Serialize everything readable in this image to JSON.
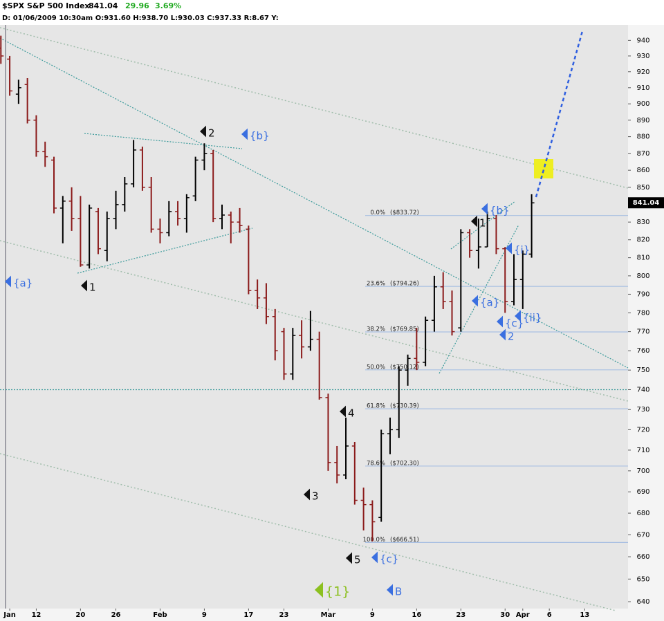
{
  "chart_data": {
    "type": "ohlc",
    "symbol": "$SPX S&P 500 Index",
    "last_price": 841.04,
    "change": 29.96,
    "change_pct": "3.69%",
    "info": "D: 01/06/2009  10:30am O:931.60 H:938.70 L:930.03 C:937.33 R:8.67 Y:",
    "up_color": "#000000",
    "down_color": "#8b1a1a",
    "log_scale": true,
    "x": [
      0,
      1,
      2,
      3,
      4,
      5,
      6,
      7,
      8,
      9,
      10,
      11,
      12,
      13,
      14,
      15,
      16,
      17,
      18,
      19,
      20,
      21,
      22,
      23,
      24,
      25,
      26,
      27,
      28,
      29,
      30,
      31,
      32,
      33,
      34,
      35,
      36,
      37,
      38,
      39,
      40,
      41,
      42,
      43,
      44,
      45,
      46,
      47,
      48,
      49,
      50,
      51,
      52,
      53,
      54,
      55,
      56,
      57,
      58,
      59,
      60
    ],
    "open": [
      935,
      928,
      906,
      912,
      890,
      871,
      866,
      838,
      842,
      832,
      806,
      836,
      814,
      832,
      840,
      852,
      872,
      850,
      826,
      824,
      836,
      832,
      845,
      866,
      870,
      832,
      834,
      830,
      826,
      792,
      788,
      778,
      770,
      748,
      768,
      762,
      766,
      736,
      704,
      698,
      712,
      686,
      684,
      678,
      718,
      720,
      750,
      756,
      754,
      776,
      794,
      786,
      772,
      824,
      814,
      816,
      832,
      815,
      786,
      798,
      812
    ],
    "high": [
      943,
      930,
      915,
      916,
      893,
      877,
      868,
      845,
      850,
      845,
      840,
      838,
      836,
      848,
      856,
      878,
      874,
      856,
      832,
      842,
      842,
      846,
      868,
      876,
      872,
      840,
      836,
      838,
      828,
      798,
      796,
      782,
      772,
      772,
      776,
      781,
      770,
      738,
      712,
      726,
      714,
      692,
      686,
      720,
      726,
      752,
      758,
      772,
      778,
      800,
      802,
      792,
      826,
      826,
      832,
      836,
      834,
      816,
      812,
      814,
      846
    ],
    "low": [
      925,
      905,
      900,
      888,
      868,
      862,
      835,
      818,
      825,
      805,
      804,
      812,
      808,
      826,
      836,
      850,
      848,
      824,
      818,
      822,
      828,
      824,
      842,
      860,
      830,
      826,
      818,
      824,
      790,
      782,
      774,
      755,
      745,
      745,
      756,
      760,
      735,
      700,
      694,
      696,
      684,
      672,
      667,
      676,
      708,
      716,
      742,
      750,
      752,
      770,
      782,
      768,
      770,
      810,
      804,
      816,
      812,
      780,
      784,
      782,
      810
    ],
    "close": [
      930,
      908,
      910,
      890,
      871,
      868,
      838,
      842,
      832,
      806,
      838,
      815,
      832,
      840,
      852,
      872,
      850,
      826,
      824,
      836,
      832,
      844,
      866,
      870,
      832,
      834,
      830,
      828,
      792,
      788,
      778,
      760,
      748,
      768,
      762,
      766,
      736,
      704,
      698,
      712,
      686,
      684,
      676,
      718,
      720,
      750,
      756,
      754,
      776,
      794,
      786,
      770,
      824,
      814,
      816,
      832,
      815,
      786,
      798,
      812,
      841
    ],
    "xlim": [
      -0.1,
      70.9
    ],
    "xticks": [
      {
        "value": 1,
        "label": "Jan"
      },
      {
        "value": 4,
        "label": "12"
      },
      {
        "value": 9,
        "label": "20"
      },
      {
        "value": 13,
        "label": "26"
      },
      {
        "value": 18,
        "label": "Feb"
      },
      {
        "value": 23,
        "label": "9"
      },
      {
        "value": 28,
        "label": "17"
      },
      {
        "value": 32,
        "label": "23"
      },
      {
        "value": 37,
        "label": "Mar"
      },
      {
        "value": 42,
        "label": "9"
      },
      {
        "value": 47,
        "label": "16"
      },
      {
        "value": 52,
        "label": "23"
      },
      {
        "value": 57,
        "label": "30"
      },
      {
        "value": 59,
        "label": "Apr"
      },
      {
        "value": 62,
        "label": "6"
      },
      {
        "value": 66,
        "label": "13"
      }
    ],
    "ylim": [
      637,
      950
    ],
    "yticks": [
      640,
      650,
      660,
      670,
      680,
      690,
      700,
      710,
      720,
      730,
      740,
      750,
      760,
      770,
      780,
      790,
      800,
      810,
      820,
      830,
      840,
      850,
      860,
      870,
      880,
      890,
      900,
      910,
      920,
      930,
      940
    ],
    "hline": 740,
    "fib_levels": [
      {
        "pct": "0.0%",
        "price": "($833.72)",
        "value": 833.72
      },
      {
        "pct": "23.6%",
        "price": "($794.26)",
        "value": 794.26
      },
      {
        "pct": "38.2%",
        "price": "($769.85)",
        "value": 769.85
      },
      {
        "pct": "50.0%",
        "price": "($750.12)",
        "value": 750.12
      },
      {
        "pct": "61.8%",
        "price": "($730.39)",
        "value": 730.39
      },
      {
        "pct": "78.6%",
        "price": "($702.30)",
        "value": 702.3
      },
      {
        "pct": "100.0%",
        "price": "($666.51)",
        "value": 666.51
      }
    ],
    "annotations": [
      {
        "text": "2",
        "color": "#111111"
      },
      {
        "text": "{b}",
        "color": "#3a6fe0"
      },
      {
        "text": "{a}",
        "color": "#3a6fe0"
      },
      {
        "text": "1",
        "color": "#111111"
      },
      {
        "text": "4",
        "color": "#111111"
      },
      {
        "text": "3",
        "color": "#111111"
      },
      {
        "text": "5",
        "color": "#111111"
      },
      {
        "text": "{c}",
        "color": "#3a6fe0"
      },
      {
        "text": "{1}",
        "color": "#8cc020"
      },
      {
        "text": "B",
        "color": "#3a6fe0"
      },
      {
        "text": "{b}",
        "color": "#3a6fe0"
      },
      {
        "text": "1",
        "color": "#111111"
      },
      {
        "text": "{i}",
        "color": "#3a6fe0"
      },
      {
        "text": "{a}",
        "color": "#3a6fe0"
      },
      {
        "text": "{c}",
        "color": "#3a6fe0"
      },
      {
        "text": "{ii}",
        "color": "#3a6fe0"
      },
      {
        "text": "2",
        "color": "#3a6fe0"
      }
    ]
  }
}
